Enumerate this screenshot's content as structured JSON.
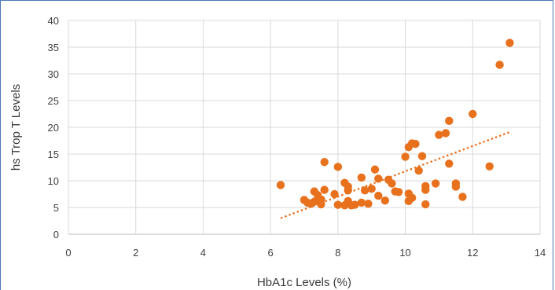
{
  "chart_data": {
    "type": "scatter",
    "xlabel": "HbA1c Levels (%)",
    "ylabel": "hs Trop T Levels",
    "xlim": [
      0,
      14
    ],
    "ylim": [
      0,
      40
    ],
    "x_ticks": [
      "0",
      "2",
      "4",
      "6",
      "8",
      "10",
      "12",
      "14"
    ],
    "y_ticks": [
      "0",
      "5",
      "10",
      "15",
      "20",
      "25",
      "30",
      "35",
      "40"
    ],
    "grid": "vertical and horizontal gridlines",
    "legend": "none",
    "marker_color": "#e8711e",
    "trendline": {
      "style": "dotted",
      "color": "#e8711e",
      "x": [
        6.3,
        13.1
      ],
      "y": [
        3.0,
        19.1
      ]
    },
    "series": [
      {
        "points": [
          [
            6.3,
            9.2
          ],
          [
            7.0,
            6.4
          ],
          [
            7.1,
            5.9
          ],
          [
            7.2,
            5.7
          ],
          [
            7.3,
            8.0
          ],
          [
            7.3,
            6.1
          ],
          [
            7.4,
            7.3
          ],
          [
            7.5,
            6.5
          ],
          [
            7.5,
            5.6
          ],
          [
            7.6,
            13.5
          ],
          [
            7.6,
            8.3
          ],
          [
            7.9,
            7.5
          ],
          [
            8.0,
            12.6
          ],
          [
            8.0,
            5.5
          ],
          [
            8.2,
            9.6
          ],
          [
            8.2,
            5.4
          ],
          [
            8.3,
            8.9
          ],
          [
            8.3,
            8.2
          ],
          [
            8.3,
            6.2
          ],
          [
            8.4,
            5.4
          ],
          [
            8.5,
            5.5
          ],
          [
            8.7,
            10.6
          ],
          [
            8.7,
            5.9
          ],
          [
            8.8,
            8.2
          ],
          [
            8.9,
            5.7
          ],
          [
            9.0,
            8.5
          ],
          [
            9.1,
            12.1
          ],
          [
            9.2,
            10.4
          ],
          [
            9.2,
            7.2
          ],
          [
            9.4,
            6.3
          ],
          [
            9.5,
            10.2
          ],
          [
            9.6,
            9.5
          ],
          [
            9.7,
            8.0
          ],
          [
            9.8,
            7.9
          ],
          [
            10.0,
            14.5
          ],
          [
            10.1,
            16.3
          ],
          [
            10.1,
            7.6
          ],
          [
            10.1,
            6.2
          ],
          [
            10.2,
            17.0
          ],
          [
            10.2,
            6.8
          ],
          [
            10.3,
            16.9
          ],
          [
            10.4,
            11.9
          ],
          [
            10.5,
            14.6
          ],
          [
            10.6,
            9.0
          ],
          [
            10.6,
            8.3
          ],
          [
            10.6,
            5.6
          ],
          [
            10.9,
            9.5
          ],
          [
            11.0,
            18.6
          ],
          [
            11.2,
            18.9
          ],
          [
            11.3,
            21.2
          ],
          [
            11.3,
            13.2
          ],
          [
            11.5,
            9.5
          ],
          [
            11.5,
            8.9
          ],
          [
            11.7,
            7.0
          ],
          [
            12.0,
            22.5
          ],
          [
            12.5,
            12.7
          ],
          [
            12.8,
            31.7
          ],
          [
            13.1,
            35.8
          ]
        ]
      }
    ]
  }
}
